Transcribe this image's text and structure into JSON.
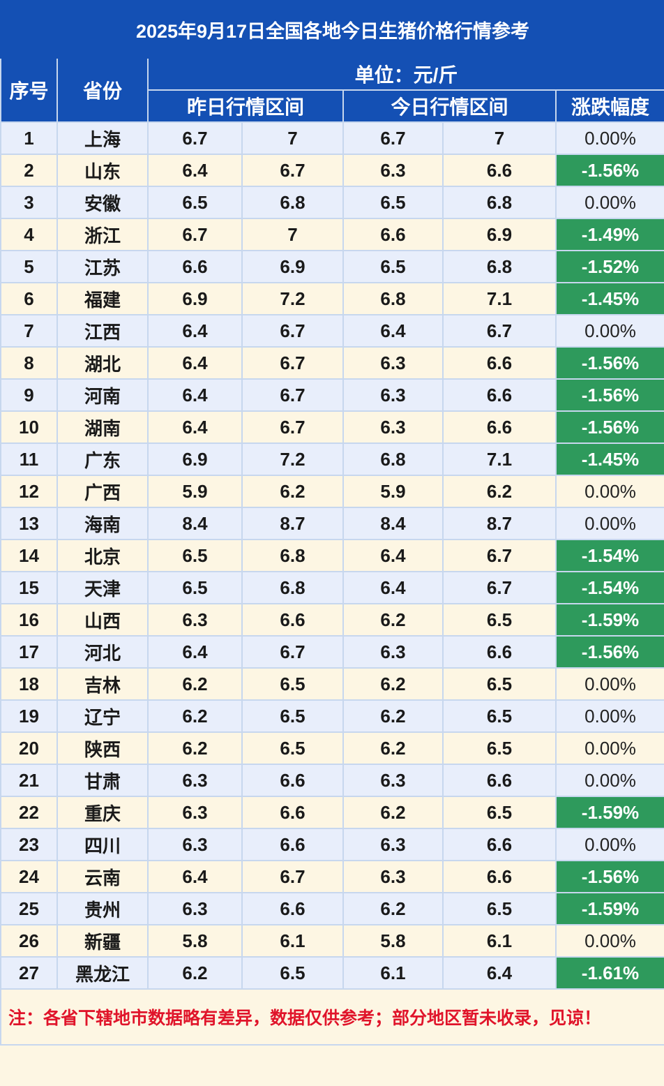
{
  "title": "2025年9月17日全国各地今日生猪价格行情参考",
  "headers": {
    "index": "序号",
    "province": "省份",
    "unit": "单位：元/斤",
    "yesterday": "昨日行情区间",
    "today": "今日行情区间",
    "change": "涨跌幅度"
  },
  "colors": {
    "header_bg": "#1450b4",
    "down_bg": "#2e9a5c",
    "note_text": "#e0142a"
  },
  "rows": [
    {
      "no": "1",
      "province": "上海",
      "y_low": "6.7",
      "y_high": "7",
      "t_low": "6.7",
      "t_high": "7",
      "change": "0.00%"
    },
    {
      "no": "2",
      "province": "山东",
      "y_low": "6.4",
      "y_high": "6.7",
      "t_low": "6.3",
      "t_high": "6.6",
      "change": "-1.56%"
    },
    {
      "no": "3",
      "province": "安徽",
      "y_low": "6.5",
      "y_high": "6.8",
      "t_low": "6.5",
      "t_high": "6.8",
      "change": "0.00%"
    },
    {
      "no": "4",
      "province": "浙江",
      "y_low": "6.7",
      "y_high": "7",
      "t_low": "6.6",
      "t_high": "6.9",
      "change": "-1.49%"
    },
    {
      "no": "5",
      "province": "江苏",
      "y_low": "6.6",
      "y_high": "6.9",
      "t_low": "6.5",
      "t_high": "6.8",
      "change": "-1.52%"
    },
    {
      "no": "6",
      "province": "福建",
      "y_low": "6.9",
      "y_high": "7.2",
      "t_low": "6.8",
      "t_high": "7.1",
      "change": "-1.45%"
    },
    {
      "no": "7",
      "province": "江西",
      "y_low": "6.4",
      "y_high": "6.7",
      "t_low": "6.4",
      "t_high": "6.7",
      "change": "0.00%"
    },
    {
      "no": "8",
      "province": "湖北",
      "y_low": "6.4",
      "y_high": "6.7",
      "t_low": "6.3",
      "t_high": "6.6",
      "change": "-1.56%"
    },
    {
      "no": "9",
      "province": "河南",
      "y_low": "6.4",
      "y_high": "6.7",
      "t_low": "6.3",
      "t_high": "6.6",
      "change": "-1.56%"
    },
    {
      "no": "10",
      "province": "湖南",
      "y_low": "6.4",
      "y_high": "6.7",
      "t_low": "6.3",
      "t_high": "6.6",
      "change": "-1.56%"
    },
    {
      "no": "11",
      "province": "广东",
      "y_low": "6.9",
      "y_high": "7.2",
      "t_low": "6.8",
      "t_high": "7.1",
      "change": "-1.45%"
    },
    {
      "no": "12",
      "province": "广西",
      "y_low": "5.9",
      "y_high": "6.2",
      "t_low": "5.9",
      "t_high": "6.2",
      "change": "0.00%"
    },
    {
      "no": "13",
      "province": "海南",
      "y_low": "8.4",
      "y_high": "8.7",
      "t_low": "8.4",
      "t_high": "8.7",
      "change": "0.00%"
    },
    {
      "no": "14",
      "province": "北京",
      "y_low": "6.5",
      "y_high": "6.8",
      "t_low": "6.4",
      "t_high": "6.7",
      "change": "-1.54%"
    },
    {
      "no": "15",
      "province": "天津",
      "y_low": "6.5",
      "y_high": "6.8",
      "t_low": "6.4",
      "t_high": "6.7",
      "change": "-1.54%"
    },
    {
      "no": "16",
      "province": "山西",
      "y_low": "6.3",
      "y_high": "6.6",
      "t_low": "6.2",
      "t_high": "6.5",
      "change": "-1.59%"
    },
    {
      "no": "17",
      "province": "河北",
      "y_low": "6.4",
      "y_high": "6.7",
      "t_low": "6.3",
      "t_high": "6.6",
      "change": "-1.56%"
    },
    {
      "no": "18",
      "province": "吉林",
      "y_low": "6.2",
      "y_high": "6.5",
      "t_low": "6.2",
      "t_high": "6.5",
      "change": "0.00%"
    },
    {
      "no": "19",
      "province": "辽宁",
      "y_low": "6.2",
      "y_high": "6.5",
      "t_low": "6.2",
      "t_high": "6.5",
      "change": "0.00%"
    },
    {
      "no": "20",
      "province": "陕西",
      "y_low": "6.2",
      "y_high": "6.5",
      "t_low": "6.2",
      "t_high": "6.5",
      "change": "0.00%"
    },
    {
      "no": "21",
      "province": "甘肃",
      "y_low": "6.3",
      "y_high": "6.6",
      "t_low": "6.3",
      "t_high": "6.6",
      "change": "0.00%"
    },
    {
      "no": "22",
      "province": "重庆",
      "y_low": "6.3",
      "y_high": "6.6",
      "t_low": "6.2",
      "t_high": "6.5",
      "change": "-1.59%"
    },
    {
      "no": "23",
      "province": "四川",
      "y_low": "6.3",
      "y_high": "6.6",
      "t_low": "6.3",
      "t_high": "6.6",
      "change": "0.00%"
    },
    {
      "no": "24",
      "province": "云南",
      "y_low": "6.4",
      "y_high": "6.7",
      "t_low": "6.3",
      "t_high": "6.6",
      "change": "-1.56%"
    },
    {
      "no": "25",
      "province": "贵州",
      "y_low": "6.3",
      "y_high": "6.6",
      "t_low": "6.2",
      "t_high": "6.5",
      "change": "-1.59%"
    },
    {
      "no": "26",
      "province": "新疆",
      "y_low": "5.8",
      "y_high": "6.1",
      "t_low": "5.8",
      "t_high": "6.1",
      "change": "0.00%"
    },
    {
      "no": "27",
      "province": "黑龙江",
      "y_low": "6.2",
      "y_high": "6.5",
      "t_low": "6.1",
      "t_high": "6.4",
      "change": "-1.61%"
    }
  ],
  "note": "注：各省下辖地市数据略有差异，数据仅供参考；部分地区暂未收录，见谅！"
}
